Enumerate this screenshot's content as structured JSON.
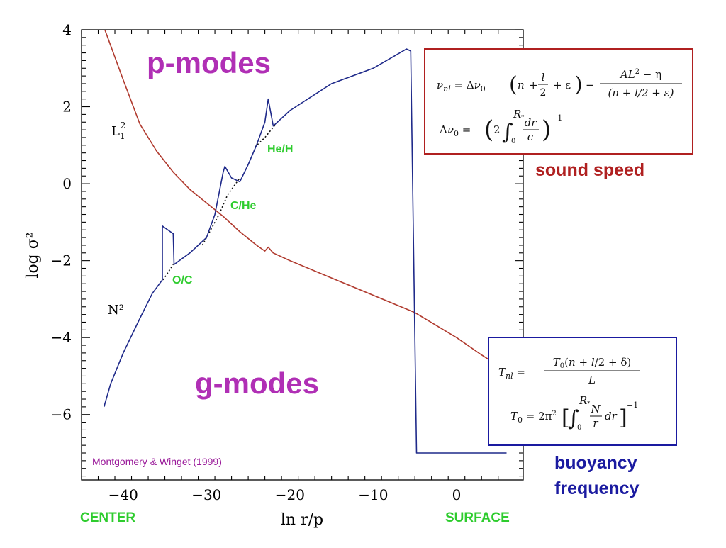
{
  "chart_data": {
    "type": "line",
    "xlabel": "ln r/p",
    "ylabel": "log σ²",
    "xlim": [
      -45,
      8
    ],
    "ylim": [
      -7.7,
      4
    ],
    "xticks": [
      -40,
      -30,
      -20,
      -10,
      0
    ],
    "yticks": [
      4,
      2,
      0,
      -2,
      -4,
      -6
    ],
    "tick_labels_x": [
      "−40",
      "−30",
      "−20",
      "−10",
      "0"
    ],
    "tick_labels_y": [
      "4",
      "2",
      "0",
      "−2",
      "−4",
      "−6"
    ],
    "series": [
      {
        "name": "L₁²",
        "color": "#b03a2e",
        "points": [
          [
            -42.2,
            4.0
          ],
          [
            -40.0,
            2.7
          ],
          [
            -38.0,
            1.55
          ],
          [
            -36.0,
            0.85
          ],
          [
            -34.0,
            0.3
          ],
          [
            -32.0,
            -0.15
          ],
          [
            -30.0,
            -0.5
          ],
          [
            -28.0,
            -0.85
          ],
          [
            -26.0,
            -1.25
          ],
          [
            -24.0,
            -1.6
          ],
          [
            -23.0,
            -1.75
          ],
          [
            -22.6,
            -1.65
          ],
          [
            -22.0,
            -1.8
          ],
          [
            -20.0,
            -2.0
          ],
          [
            -15.0,
            -2.45
          ],
          [
            -10.0,
            -2.9
          ],
          [
            -5.0,
            -3.35
          ],
          [
            0.0,
            -4.0
          ],
          [
            3.0,
            -4.45
          ],
          [
            5.5,
            -4.8
          ]
        ]
      },
      {
        "name": "N²",
        "color": "#1f2a8a",
        "points": [
          [
            -42.3,
            -5.8
          ],
          [
            -41.5,
            -5.2
          ],
          [
            -40.0,
            -4.4
          ],
          [
            -38.0,
            -3.5
          ],
          [
            -36.5,
            -2.85
          ],
          [
            -35.3,
            -2.5
          ],
          [
            -35.3,
            -1.1
          ],
          [
            -34.0,
            -1.3
          ],
          [
            -33.9,
            -2.1
          ],
          [
            -32.0,
            -1.8
          ],
          [
            -30.0,
            -1.4
          ],
          [
            -29.0,
            -0.8
          ],
          [
            -28.0,
            0.3
          ],
          [
            -27.8,
            0.45
          ],
          [
            -27.0,
            0.15
          ],
          [
            -26.0,
            0.05
          ],
          [
            -25.0,
            0.5
          ],
          [
            -24.0,
            1.0
          ],
          [
            -23.0,
            1.6
          ],
          [
            -22.6,
            2.2
          ],
          [
            -22.0,
            1.5
          ],
          [
            -20.0,
            1.9
          ],
          [
            -15.0,
            2.6
          ],
          [
            -10.0,
            3.0
          ],
          [
            -6.0,
            3.5
          ],
          [
            -5.5,
            3.45
          ],
          [
            -4.8,
            -7.0
          ],
          [
            6.0,
            -7.0
          ]
        ]
      }
    ],
    "interpolations": [
      {
        "points": [
          [
            -35.2,
            -2.5
          ],
          [
            -34.0,
            -2.1
          ]
        ]
      },
      {
        "points": [
          [
            -30.5,
            -1.6
          ],
          [
            -28.5,
            -0.8
          ],
          [
            -27.5,
            -0.3
          ],
          [
            -26.0,
            0.15
          ]
        ]
      },
      {
        "points": [
          [
            -24.2,
            0.95
          ],
          [
            -23.0,
            1.2
          ],
          [
            -21.5,
            1.6
          ]
        ]
      }
    ],
    "annotations": {
      "p_modes": "p-modes",
      "g_modes": "g-modes",
      "transition_he_h": "He/H",
      "transition_c_he": "C/He",
      "transition_o_c": "O/C",
      "label_l1": "L",
      "label_l1_sub": "1",
      "label_l1_sup": "2",
      "label_n2": "N²",
      "center": "CENTER",
      "surface": "SURFACE",
      "sound_speed": "sound speed",
      "buoyancy_line1": "buoyancy",
      "buoyancy_line2": "frequency",
      "credit": "Montgomery & Winget (1999)"
    },
    "colors": {
      "modes": "#b02fb5",
      "transitions": "#2ecc2e",
      "sound_speed": "#b02020",
      "buoyancy": "#1a1aa0",
      "credit": "#9a1a9a",
      "eq_box_top": "#b02020",
      "eq_box_bottom": "#1a1aa0"
    }
  }
}
